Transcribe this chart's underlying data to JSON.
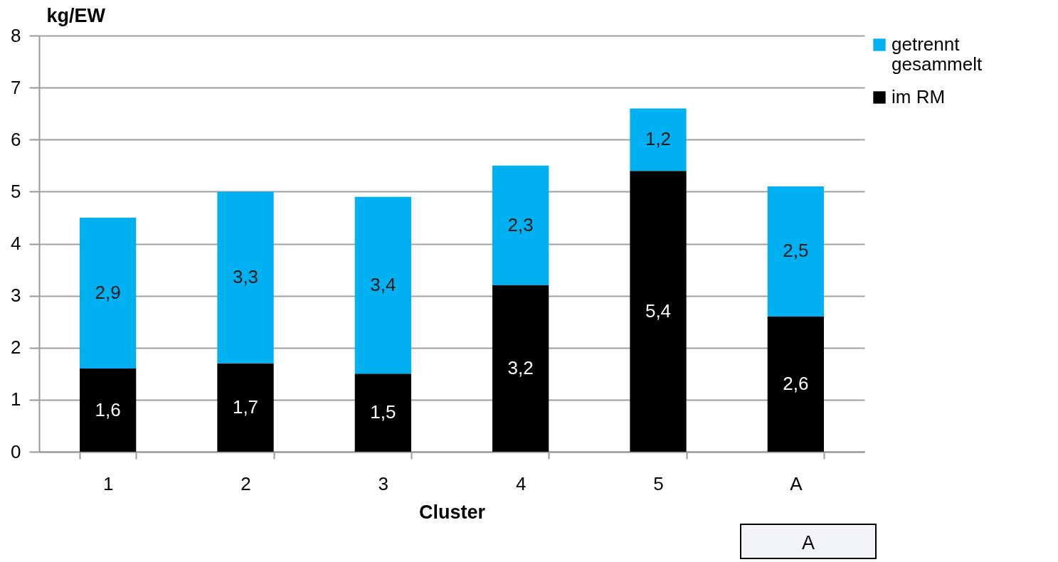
{
  "chart_data": {
    "type": "bar",
    "stacked": true,
    "xlabel": "Cluster",
    "ylabel": "kg/EW",
    "categories": [
      "1",
      "2",
      "3",
      "4",
      "5",
      "A"
    ],
    "series": [
      {
        "name": "im RM",
        "color": "#000000",
        "values": [
          1.6,
          1.7,
          1.5,
          3.2,
          5.4,
          2.6
        ],
        "value_labels": [
          "1,6",
          "1,7",
          "1,5",
          "3,2",
          "5,4",
          "2,6"
        ]
      },
      {
        "name": "getrennt gesammelt",
        "color": "#00b0f0",
        "values": [
          2.9,
          3.3,
          3.4,
          2.3,
          1.2,
          2.5
        ],
        "value_labels": [
          "2,9",
          "3,3",
          "3,4",
          "2,3",
          "1,2",
          "2,5"
        ]
      }
    ],
    "ylim": [
      0,
      8
    ],
    "yticks": [
      0,
      1,
      2,
      3,
      4,
      5,
      6,
      7,
      8
    ],
    "grid": "y",
    "legend": "right",
    "annotations": [
      "A"
    ]
  }
}
